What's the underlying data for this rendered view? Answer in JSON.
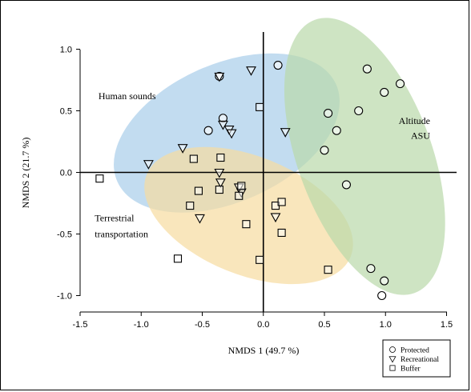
{
  "chart_data": {
    "type": "scatter",
    "xlabel": "NMDS 1 (49.7 %)",
    "ylabel": "NMDS 2 (21.7 %)",
    "xlim": [
      -1.5,
      1.5
    ],
    "ylim": [
      -1.1,
      1.05
    ],
    "x_ticks": [
      "-1.5",
      "-1.0",
      "-0.5",
      "0.0",
      "0.5",
      "1.0",
      "1.5"
    ],
    "y_ticks": [
      "1.0",
      "0.5",
      "0.0",
      "-0.5",
      "-1.0"
    ],
    "ellipses": [
      {
        "label": "Human sounds",
        "color": "#a8cdea",
        "cx": -0.3,
        "cy": 0.32,
        "rx": 0.98,
        "ry": 0.56,
        "angle_deg": 24
      },
      {
        "label": "Terrestrial transportation",
        "color": "#f7dca0",
        "cx": -0.12,
        "cy": -0.35,
        "rx": 0.9,
        "ry": 0.48,
        "angle_deg": -22
      },
      {
        "label": "Altitude ASU",
        "color": "#b9d9a9",
        "cx": 0.83,
        "cy": 0.13,
        "rx": 0.55,
        "ry": 1.18,
        "angle_deg": 20
      }
    ],
    "annotations": [
      {
        "text": "Human sounds",
        "x": -1.35,
        "y": 0.62
      },
      {
        "text": "Terrestrial",
        "x": -1.38,
        "y": -0.37
      },
      {
        "text": "transportation",
        "x": -1.38,
        "y": -0.5
      },
      {
        "text": "Altitude",
        "x": 1.05,
        "y": 0.42
      },
      {
        "text": "ASU",
        "x": 1.05,
        "y": 0.3
      }
    ],
    "series": [
      {
        "name": "Protected",
        "marker": "circle",
        "points": [
          [
            0.12,
            0.87
          ],
          [
            -0.36,
            0.78
          ],
          [
            0.85,
            0.84
          ],
          [
            1.12,
            0.72
          ],
          [
            0.99,
            0.65
          ],
          [
            0.53,
            0.48
          ],
          [
            0.78,
            0.5
          ],
          [
            0.6,
            0.34
          ],
          [
            0.5,
            0.18
          ],
          [
            0.68,
            -0.1
          ],
          [
            -0.33,
            0.44
          ],
          [
            -0.45,
            0.34
          ],
          [
            0.88,
            -0.78
          ],
          [
            0.99,
            -0.88
          ],
          [
            0.97,
            -1.0
          ]
        ]
      },
      {
        "name": "Recreational",
        "marker": "triangle",
        "points": [
          [
            -0.36,
            0.78
          ],
          [
            -0.1,
            0.83
          ],
          [
            -0.33,
            0.39
          ],
          [
            -0.28,
            0.35
          ],
          [
            -0.26,
            0.32
          ],
          [
            0.18,
            0.33
          ],
          [
            -0.66,
            0.2
          ],
          [
            -0.94,
            0.07
          ],
          [
            -0.36,
            0.0
          ],
          [
            -0.35,
            -0.08
          ],
          [
            -0.18,
            -0.16
          ],
          [
            -0.2,
            -0.12
          ],
          [
            0.1,
            -0.36
          ],
          [
            -0.52,
            -0.37
          ]
        ]
      },
      {
        "name": "Buffer",
        "marker": "square",
        "points": [
          [
            -1.34,
            -0.05
          ],
          [
            -0.03,
            0.53
          ],
          [
            -0.35,
            0.12
          ],
          [
            -0.57,
            0.11
          ],
          [
            -0.36,
            -0.14
          ],
          [
            -0.53,
            -0.15
          ],
          [
            -0.18,
            -0.11
          ],
          [
            -0.2,
            -0.19
          ],
          [
            -0.6,
            -0.27
          ],
          [
            0.1,
            -0.27
          ],
          [
            0.15,
            -0.24
          ],
          [
            -0.14,
            -0.42
          ],
          [
            0.15,
            -0.49
          ],
          [
            -0.7,
            -0.7
          ],
          [
            -0.03,
            -0.71
          ],
          [
            0.53,
            -0.79
          ]
        ]
      }
    ],
    "legend": {
      "position": "bottom-right",
      "entries": [
        {
          "label": "Protected",
          "marker": "circle"
        },
        {
          "label": "Recreational",
          "marker": "triangle"
        },
        {
          "label": "Buffer",
          "marker": "square"
        }
      ]
    }
  }
}
